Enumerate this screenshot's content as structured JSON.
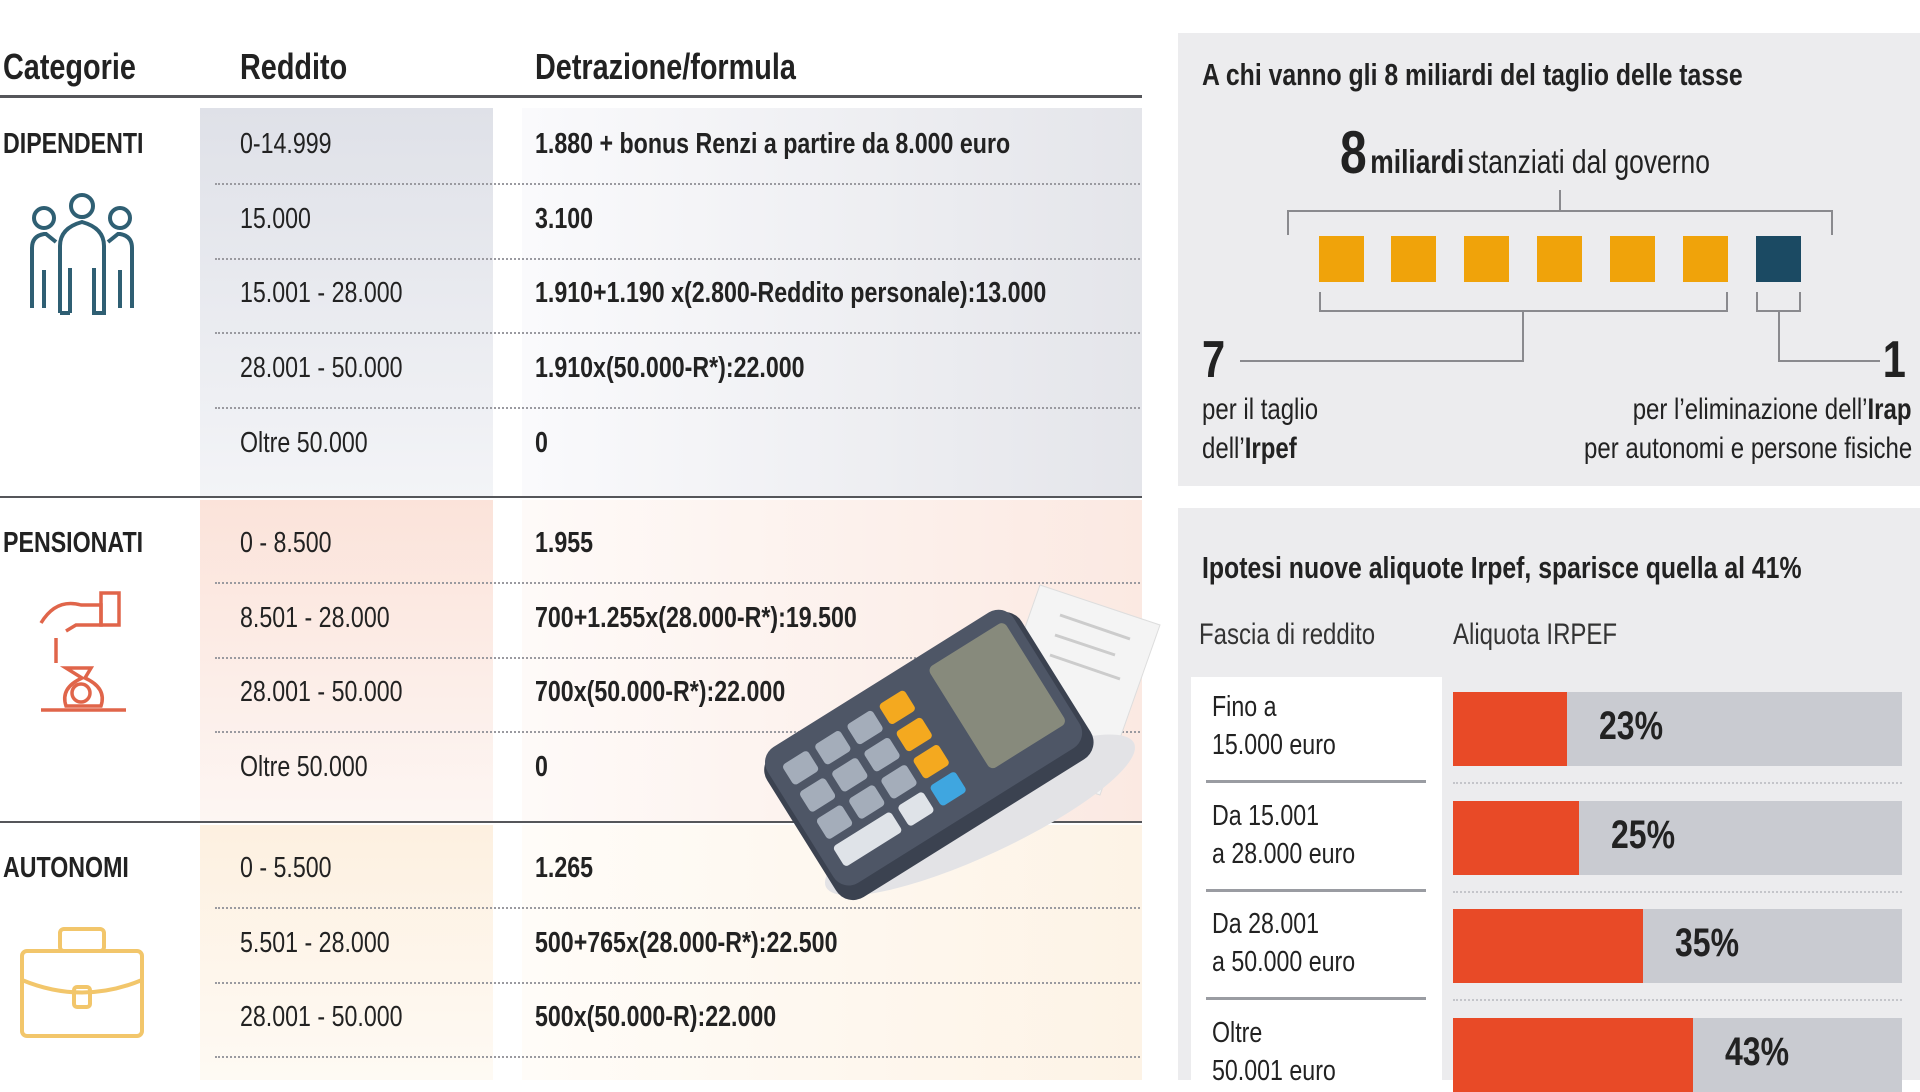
{
  "table": {
    "headers": {
      "category": "Categorie",
      "income": "Reddito",
      "formula": "Detrazione/formula"
    },
    "sections": [
      {
        "category": "DIPENDENTI",
        "icon": "people-icon",
        "color": "#2f5f73",
        "rows": [
          {
            "income": "0-14.999",
            "formula": "1.880 + bonus Renzi a partire da 8.000 euro"
          },
          {
            "income": "15.000",
            "formula": "3.100"
          },
          {
            "income": "15.001 - 28.000",
            "formula": "1.910+1.190 x(2.800-Reddito personale):13.000"
          },
          {
            "income": "28.001 - 50.000",
            "formula": "1.910x(50.000-R*):22.000"
          },
          {
            "income": "Oltre 50.000",
            "formula": "0"
          }
        ]
      },
      {
        "category": "PENSIONATI",
        "icon": "hand-money-bag-icon",
        "color": "#e0654a",
        "rows": [
          {
            "income": "0 - 8.500",
            "formula": "1.955"
          },
          {
            "income": "8.501 - 28.000",
            "formula": "700+1.255x(28.000-R*):19.500"
          },
          {
            "income": "28.001 - 50.000",
            "formula": "700x(50.000-R*):22.000"
          },
          {
            "income": "Oltre 50.000",
            "formula": "0"
          }
        ]
      },
      {
        "category": "AUTONOMI",
        "icon": "briefcase-icon",
        "color": "#f2c66b",
        "rows": [
          {
            "income": "0 - 5.500",
            "formula": "1.265"
          },
          {
            "income": "5.501 - 28.000",
            "formula": "500+765x(28.000-R*):22.500"
          },
          {
            "income": "28.001 - 50.000",
            "formula": "500x(50.000-R):22.000"
          }
        ]
      }
    ]
  },
  "split_panel": {
    "title": "A chi vanno gli 8 miliardi del taglio delle tasse",
    "total_number": "8",
    "total_unit": "miliardi",
    "total_rest": "stanziati dal governo",
    "squares": {
      "irpef_count": 7,
      "irap_count": 1,
      "visible_orange": 6,
      "visible_blue": 1
    },
    "colors": {
      "irpef": "#f0a30a",
      "irap": "#1b4a63"
    },
    "left_number": "7",
    "left_line1": "per il taglio",
    "left_line2_prefix": "dell’",
    "left_line2_bold": "Irpef",
    "right_number": "1",
    "right_line1_prefix": "per l’eliminazione dell’",
    "right_line1_bold": "Irap",
    "right_line2": "per autonomi e persone fisiche"
  },
  "rates_panel": {
    "title": "Ipotesi nuove aliquote Irpef, sparisce quella al 41%",
    "col_income": "Fascia di reddito",
    "col_rate": "Aliquota IRPEF",
    "rows": [
      {
        "line1": "Fino a",
        "line2": "15.000 euro",
        "label": "23%"
      },
      {
        "line1": "Da 15.001",
        "line2": "a 28.000 euro",
        "label": "25%"
      },
      {
        "line1": "Da 28.001",
        "line2": "a 50.000 euro",
        "label": "35%"
      },
      {
        "line1": "Oltre",
        "line2": "50.001 euro",
        "label": "43%"
      }
    ],
    "bar_color": "#e84a27",
    "track_color": "#c9cbd1"
  },
  "chart_data": {
    "type": "bar",
    "orientation": "horizontal",
    "title": "Ipotesi nuove aliquote Irpef, sparisce quella al 41%",
    "xlabel": "Aliquota IRPEF",
    "ylabel": "Fascia di reddito",
    "categories": [
      "Fino a 15.000 euro",
      "Da 15.001 a 28.000 euro",
      "Da 28.001 a 50.000 euro",
      "Oltre 50.001 euro"
    ],
    "values": [
      23,
      25,
      35,
      43
    ],
    "unit": "%"
  },
  "illustration": {
    "name": "calculator-with-receipt"
  }
}
